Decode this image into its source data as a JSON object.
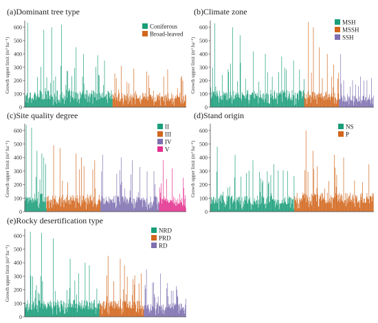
{
  "colors": {
    "teal": "#1a9e7a",
    "orange": "#d2661c",
    "purple": "#7e70b0",
    "pink": "#e3308e",
    "axis": "#444444",
    "tick_text": "#333333"
  },
  "chart_data": [
    {
      "type": "bar",
      "panel": "a",
      "title": "(a)Dominant tree type",
      "ylabel": "Growth upper limit (m³ ha⁻¹)",
      "ylim": [
        0,
        650
      ],
      "yticks": [
        "0",
        "100",
        "200",
        "300",
        "400",
        "500",
        "600"
      ],
      "grid": false,
      "legend_position": "top-right",
      "series": [
        {
          "name": "Coniferous",
          "color": "teal",
          "count": 180,
          "typical_values": [
            50,
            130
          ],
          "peak_values": [
            635,
            580,
            600,
            620,
            450,
            400,
            390,
            350
          ]
        },
        {
          "name": "Broad-leaved",
          "color": "orange",
          "count": 150,
          "typical_values": [
            40,
            110
          ],
          "peak_values": [
            310,
            290,
            240,
            230,
            200
          ]
        }
      ]
    },
    {
      "type": "bar",
      "panel": "b",
      "title": "(b)Climate zone",
      "ylabel": "Growth upper limit (m³ ha⁻¹)",
      "ylim": [
        0,
        650
      ],
      "yticks": [
        "0",
        "100",
        "200",
        "300",
        "400",
        "500",
        "600"
      ],
      "grid": false,
      "legend_position": "top-right",
      "series": [
        {
          "name": "MSH",
          "color": "teal",
          "count": 190,
          "typical_values": [
            50,
            130
          ],
          "peak_values": [
            630,
            600,
            540,
            420,
            400,
            380,
            350
          ]
        },
        {
          "name": "MSSH",
          "color": "orange",
          "count": 70,
          "typical_values": [
            50,
            120
          ],
          "peak_values": [
            640,
            600,
            450,
            400,
            320
          ]
        },
        {
          "name": "SSH",
          "color": "purple",
          "count": 70,
          "typical_values": [
            40,
            90
          ],
          "peak_values": [
            400,
            230,
            200
          ]
        }
      ]
    },
    {
      "type": "bar",
      "panel": "c",
      "title": "(c)Site quality degree",
      "ylabel": "Growth upper limit (m³ ha⁻¹)",
      "ylim": [
        0,
        650
      ],
      "yticks": [
        "0",
        "100",
        "200",
        "300",
        "400",
        "500",
        "600"
      ],
      "grid": false,
      "legend_position": "top-right",
      "series": [
        {
          "name": "II",
          "color": "teal",
          "count": 45,
          "typical_values": [
            60,
            140
          ],
          "peak_values": [
            640,
            620,
            450,
            430,
            400
          ]
        },
        {
          "name": "III",
          "color": "orange",
          "count": 110,
          "typical_values": [
            50,
            130
          ],
          "peak_values": [
            490,
            470,
            430,
            400,
            380
          ]
        },
        {
          "name": "IV",
          "color": "purple",
          "count": 120,
          "typical_values": [
            50,
            120
          ],
          "peak_values": [
            420,
            400,
            380,
            330,
            300
          ]
        },
        {
          "name": "V",
          "color": "pink",
          "count": 55,
          "typical_values": [
            40,
            100
          ],
          "peak_values": [
            380,
            320,
            250
          ]
        }
      ]
    },
    {
      "type": "bar",
      "panel": "d",
      "title": "(d)Stand origin",
      "ylabel": "Growth upper limit (m³ ha⁻¹)",
      "ylim": [
        0,
        650
      ],
      "yticks": [
        "0",
        "100",
        "200",
        "300",
        "400",
        "500",
        "600"
      ],
      "grid": false,
      "legend_position": "top-right",
      "series": [
        {
          "name": "NS",
          "color": "teal",
          "count": 170,
          "typical_values": [
            50,
            120
          ],
          "peak_values": [
            480,
            420,
            380,
            350,
            300
          ]
        },
        {
          "name": "P",
          "color": "orange",
          "count": 160,
          "typical_values": [
            60,
            140
          ],
          "peak_values": [
            600,
            450,
            420,
            400,
            350
          ]
        }
      ]
    },
    {
      "type": "bar",
      "panel": "e",
      "title": "(e)Rocky desertification type",
      "ylabel": "Growth upper limit (m³ ha⁻¹)",
      "ylim": [
        0,
        650
      ],
      "yticks": [
        "0",
        "100",
        "200",
        "300",
        "400",
        "500",
        "600"
      ],
      "grid": false,
      "legend_position": "top-right",
      "series": [
        {
          "name": "NRD",
          "color": "teal",
          "count": 160,
          "typical_values": [
            50,
            130
          ],
          "peak_values": [
            630,
            620,
            580,
            430,
            400,
            380
          ]
        },
        {
          "name": "PRD",
          "color": "orange",
          "count": 95,
          "typical_values": [
            50,
            120
          ],
          "peak_values": [
            450,
            430,
            380,
            320
          ]
        },
        {
          "name": "RD",
          "color": "purple",
          "count": 90,
          "typical_values": [
            40,
            100
          ],
          "peak_values": [
            350,
            320,
            250,
            200
          ]
        }
      ]
    }
  ]
}
